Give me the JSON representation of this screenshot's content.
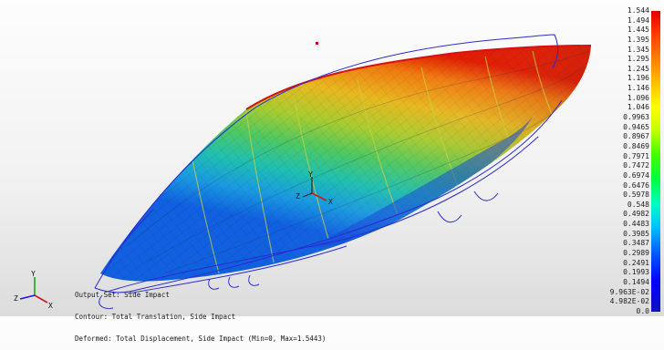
{
  "legend": {
    "values": [
      "1.544",
      "1.494",
      "1.445",
      "1.395",
      "1.345",
      "1.295",
      "1.245",
      "1.196",
      "1.146",
      "1.096",
      "1.046",
      "0.9963",
      "0.9465",
      "0.8967",
      "0.8469",
      "0.7971",
      "0.7472",
      "0.6974",
      "0.6476",
      "0.5978",
      "0.548",
      "0.4982",
      "0.4483",
      "0.3985",
      "0.3487",
      "0.2989",
      "0.2491",
      "0.1993",
      "0.1494",
      "9.963E-02",
      "4.982E-02",
      "0.0"
    ],
    "colors": {
      "max": "#e00000",
      "min": "#1010c0"
    }
  },
  "info": {
    "output_set": "Output Set: Side Impact",
    "contour": "Contour: Total Translation, Side Impact",
    "deformed": "Deformed: Total Displacement, Side Impact (Min=0, Max=1.5443)"
  },
  "triad": {
    "x_label": "X",
    "y_label": "Y",
    "z_label": "Z"
  }
}
